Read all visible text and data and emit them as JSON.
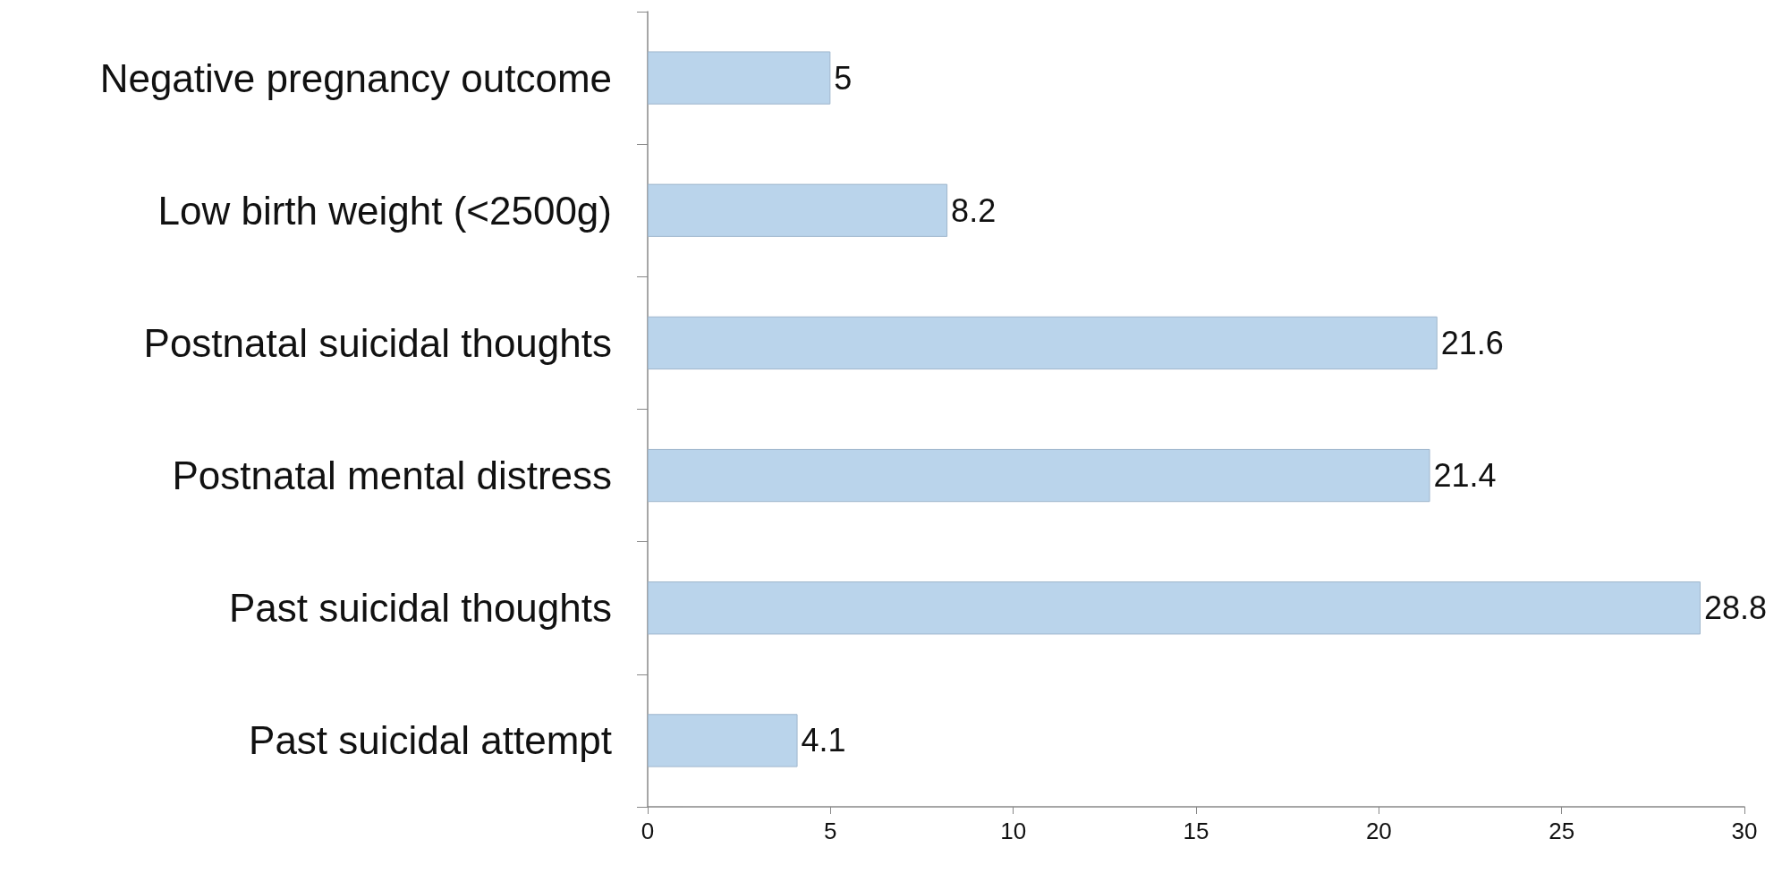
{
  "chart_data": {
    "type": "bar",
    "orientation": "horizontal",
    "categories": [
      "Negative pregnancy outcome",
      "Low birth weight (<2500g)",
      "Postnatal suicidal thoughts",
      "Postnatal mental distress",
      "Past suicidal thoughts",
      "Past suicidal attempt"
    ],
    "values": [
      5,
      8.2,
      21.6,
      21.4,
      28.8,
      4.1
    ],
    "color": "#bad4eb",
    "xlim": [
      0,
      30
    ],
    "xticks": [
      0,
      5,
      10,
      15,
      20,
      25,
      30
    ],
    "data_labels": true,
    "grid": false
  }
}
